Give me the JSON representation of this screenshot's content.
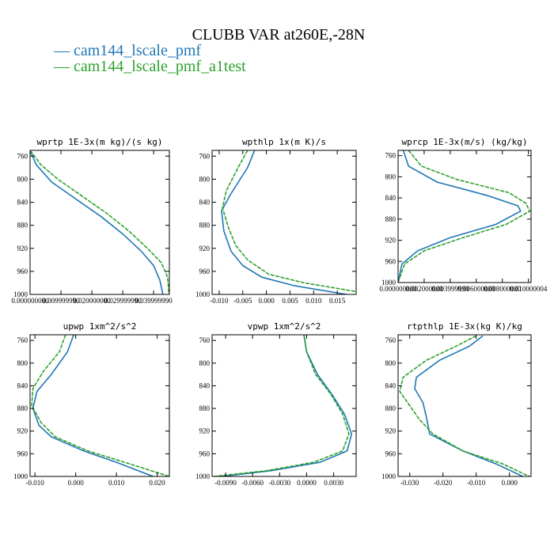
{
  "figure": {
    "title": "CLUBB VAR at260E,-28N",
    "legend": [
      {
        "label": "— cam144_lscale_pmf",
        "color": "#1f77b4"
      },
      {
        "label": "— cam144_lscale_pmf_a1test",
        "color": "#2ca02c"
      }
    ]
  },
  "chart_data": [
    {
      "type": "line",
      "title": "wprtp   1E-3x(m kg)/(s kg)",
      "xlim": [
        0.0,
        0.0451
      ],
      "ylim": [
        1000,
        750
      ],
      "x_ticks": [
        0.0,
        0.01,
        0.02,
        0.03,
        0.04
      ],
      "x_tick_labels": [
        "0.000000000",
        "0.009999990",
        "0.020000000",
        "0.029999990",
        "0.039999990"
      ],
      "y_ticks": [
        760,
        800,
        840,
        880,
        920,
        960,
        1000
      ],
      "y_tick_labels": [
        "760",
        "800",
        "840",
        "880",
        "920",
        "960",
        "1000"
      ],
      "series": [
        {
          "color": "#1f77b4",
          "dashed": false,
          "x": [
            0.0,
            0.002,
            0.007,
            0.015,
            0.023,
            0.03,
            0.036,
            0.04,
            0.042,
            0.043
          ],
          "y": [
            750,
            775,
            805,
            835,
            865,
            895,
            925,
            950,
            975,
            1000
          ]
        },
        {
          "color": "#2ca02c",
          "dashed": true,
          "x": [
            0.0,
            0.0035,
            0.009,
            0.017,
            0.025,
            0.032,
            0.038,
            0.0425,
            0.0445,
            0.045
          ],
          "y": [
            750,
            775,
            800,
            830,
            860,
            890,
            920,
            945,
            970,
            1000
          ]
        }
      ]
    },
    {
      "type": "line",
      "title": "wpthlp   1x(m K)/s",
      "xlim": [
        -0.0115,
        0.019
      ],
      "ylim": [
        1000,
        750
      ],
      "x_ticks": [
        -0.01,
        -0.005,
        0.0,
        0.005,
        0.01,
        0.015
      ],
      "x_tick_labels": [
        "-0.010",
        "-0.005",
        "0.000",
        "0.005",
        "0.010",
        "0.015"
      ],
      "y_ticks": [
        760,
        800,
        840,
        880,
        920,
        960,
        1000
      ],
      "y_tick_labels": [
        "760",
        "800",
        "840",
        "880",
        "920",
        "960",
        "1000"
      ],
      "series": [
        {
          "color": "#1f77b4",
          "dashed": false,
          "x": [
            -0.0025,
            -0.004,
            -0.0075,
            -0.0095,
            -0.009,
            -0.0075,
            -0.005,
            -0.001,
            0.006,
            0.017
          ],
          "y": [
            750,
            780,
            825,
            855,
            890,
            925,
            950,
            970,
            985,
            1000
          ]
        },
        {
          "color": "#2ca02c",
          "dashed": true,
          "x": [
            -0.004,
            -0.006,
            -0.0085,
            -0.0093,
            -0.008,
            -0.0065,
            -0.004,
            0.0005,
            0.008,
            0.019
          ],
          "y": [
            750,
            780,
            820,
            850,
            885,
            915,
            940,
            965,
            980,
            995
          ]
        }
      ]
    },
    {
      "type": "line",
      "title": "wprcp   1E-3x(m/s) (kg/kg)",
      "xlim": [
        0.0,
        0.0102
      ],
      "ylim": [
        1000,
        750
      ],
      "x_ticks": [
        0.0,
        0.002,
        0.004,
        0.006,
        0.008,
        0.01
      ],
      "x_tick_labels": [
        "0.000000000",
        "0.002000000",
        "0.003999990",
        "0.006000000",
        "0.008000000",
        "0.010000004"
      ],
      "y_ticks": [
        760,
        800,
        840,
        880,
        920,
        960,
        1000
      ],
      "y_tick_labels": [
        "760",
        "800",
        "840",
        "880",
        "920",
        "960",
        "1000"
      ],
      "series": [
        {
          "color": "#1f77b4",
          "dashed": false,
          "x": [
            0.0004,
            0.0008,
            0.003,
            0.0068,
            0.0092,
            0.0094,
            0.0075,
            0.004,
            0.0015,
            0.0003,
            0.0
          ],
          "y": [
            750,
            780,
            810,
            835,
            855,
            865,
            890,
            915,
            940,
            965,
            1000
          ]
        },
        {
          "color": "#2ca02c",
          "dashed": true,
          "x": [
            0.0008,
            0.0018,
            0.0045,
            0.0085,
            0.0098,
            0.0101,
            0.0083,
            0.005,
            0.002,
            0.0005,
            0.0
          ],
          "y": [
            750,
            780,
            805,
            830,
            850,
            865,
            890,
            915,
            940,
            965,
            1000
          ]
        }
      ]
    },
    {
      "type": "line",
      "title": "upwp   1xm^2/s^2",
      "xlim": [
        -0.0112,
        0.023
      ],
      "ylim": [
        1000,
        750
      ],
      "x_ticks": [
        -0.01,
        0.0,
        0.01,
        0.02
      ],
      "x_tick_labels": [
        "-0.010",
        "0.000",
        "0.010",
        "0.020"
      ],
      "y_ticks": [
        760,
        800,
        840,
        880,
        920,
        960,
        1000
      ],
      "y_tick_labels": [
        "760",
        "800",
        "840",
        "880",
        "920",
        "960",
        "1000"
      ],
      "series": [
        {
          "color": "#1f77b4",
          "dashed": false,
          "x": [
            -0.0005,
            -0.002,
            -0.006,
            -0.0095,
            -0.0105,
            -0.009,
            -0.006,
            0.002,
            0.01,
            0.019
          ],
          "y": [
            750,
            780,
            820,
            850,
            880,
            910,
            930,
            955,
            975,
            1000
          ]
        },
        {
          "color": "#2ca02c",
          "dashed": true,
          "x": [
            -0.0025,
            -0.004,
            -0.008,
            -0.0105,
            -0.0108,
            -0.0085,
            -0.005,
            0.003,
            0.012,
            0.023
          ],
          "y": [
            750,
            780,
            815,
            845,
            875,
            905,
            930,
            955,
            975,
            1000
          ]
        }
      ]
    },
    {
      "type": "line",
      "title": "vpwp   1xm^2/s^2",
      "xlim": [
        -0.0105,
        0.0055
      ],
      "ylim": [
        1000,
        750
      ],
      "x_ticks": [
        -0.009,
        -0.006,
        -0.003,
        0.0,
        0.003
      ],
      "x_tick_labels": [
        "-0.0090",
        "-0.0060",
        "-0.0030",
        "0.0000",
        "0.0030"
      ],
      "y_ticks": [
        760,
        800,
        840,
        880,
        920,
        960,
        1000
      ],
      "y_tick_labels": [
        "760",
        "800",
        "840",
        "880",
        "920",
        "960",
        "1000"
      ],
      "series": [
        {
          "color": "#1f77b4",
          "dashed": false,
          "x": [
            -0.0003,
            0.0,
            0.0012,
            0.0028,
            0.0042,
            0.005,
            0.0045,
            0.0015,
            -0.004,
            -0.0095
          ],
          "y": [
            750,
            780,
            820,
            855,
            890,
            925,
            955,
            975,
            990,
            1000
          ]
        },
        {
          "color": "#2ca02c",
          "dashed": true,
          "x": [
            -0.0003,
            0.0,
            0.001,
            0.0027,
            0.004,
            0.0047,
            0.004,
            0.0008,
            -0.0045,
            -0.0103
          ],
          "y": [
            750,
            780,
            820,
            855,
            890,
            925,
            955,
            975,
            990,
            1000
          ]
        }
      ]
    },
    {
      "type": "line",
      "title": "rtpthlp   1E-3x(kg K)/kg",
      "xlim": [
        -0.0335,
        0.0065
      ],
      "ylim": [
        1000,
        750
      ],
      "x_ticks": [
        -0.03,
        -0.02,
        -0.01,
        0.0
      ],
      "x_tick_labels": [
        "-0.030",
        "-0.020",
        "-0.010",
        "0.000"
      ],
      "y_ticks": [
        760,
        800,
        840,
        880,
        920,
        960,
        1000
      ],
      "y_tick_labels": [
        "760",
        "800",
        "840",
        "880",
        "920",
        "960",
        "1000"
      ],
      "series": [
        {
          "color": "#1f77b4",
          "dashed": false,
          "x": [
            -0.008,
            -0.012,
            -0.021,
            -0.028,
            -0.0285,
            -0.026,
            -0.025,
            -0.024,
            -0.014,
            -0.004,
            0.004
          ],
          "y": [
            752,
            770,
            795,
            825,
            845,
            870,
            895,
            925,
            955,
            978,
            1000
          ]
        },
        {
          "color": "#2ca02c",
          "dashed": true,
          "x": [
            -0.01,
            -0.016,
            -0.025,
            -0.032,
            -0.033,
            -0.03,
            -0.027,
            -0.023,
            -0.014,
            -0.002,
            0.006
          ],
          "y": [
            752,
            770,
            795,
            825,
            850,
            875,
            900,
            925,
            955,
            978,
            1000
          ]
        }
      ]
    }
  ]
}
